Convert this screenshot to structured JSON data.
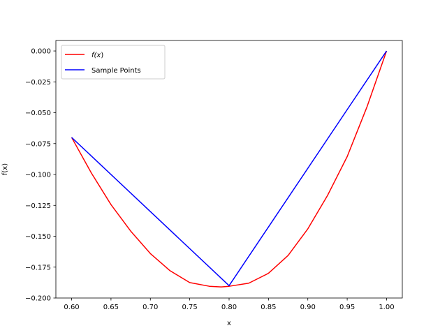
{
  "chart_data": {
    "type": "line",
    "title": "",
    "xlabel": "x",
    "ylabel": "f(x)",
    "xlim": [
      0.58,
      1.02
    ],
    "ylim": [
      -0.2,
      0.0085
    ],
    "xticks": [
      0.6,
      0.65,
      0.7,
      0.75,
      0.8,
      0.85,
      0.9,
      0.95,
      1.0
    ],
    "xtick_labels": [
      "0.60",
      "0.65",
      "0.70",
      "0.75",
      "0.80",
      "0.85",
      "0.90",
      "0.95",
      "1.00"
    ],
    "yticks": [
      0.0,
      -0.025,
      -0.05,
      -0.075,
      -0.1,
      -0.125,
      -0.15,
      -0.175,
      -0.2
    ],
    "ytick_labels": [
      "0.000",
      "−0.025",
      "−0.050",
      "−0.075",
      "−0.100",
      "−0.125",
      "−0.150",
      "−0.175",
      "−0.200"
    ],
    "grid": false,
    "legend_position": "top-left",
    "series": [
      {
        "name": "f(x)",
        "color": "#ff0000",
        "x": [
          0.6,
          0.625,
          0.65,
          0.675,
          0.7,
          0.725,
          0.75,
          0.775,
          0.79,
          0.8,
          0.825,
          0.85,
          0.875,
          0.9,
          0.925,
          0.95,
          0.975,
          1.0
        ],
        "y": [
          -0.07,
          -0.0987,
          -0.1244,
          -0.1458,
          -0.164,
          -0.1779,
          -0.1875,
          -0.1905,
          -0.191,
          -0.1905,
          -0.188,
          -0.18,
          -0.1655,
          -0.144,
          -0.117,
          -0.0855,
          -0.0455,
          0.0
        ]
      },
      {
        "name": "Sample Points",
        "color": "#0000ff",
        "x": [
          0.6,
          0.8,
          1.0
        ],
        "y": [
          -0.07,
          -0.19,
          0.0
        ]
      }
    ]
  },
  "legend": {
    "entries": [
      {
        "label_prefix": "f(",
        "label_var": "x",
        "label_suffix": ")"
      },
      {
        "label": "Sample Points"
      }
    ]
  }
}
